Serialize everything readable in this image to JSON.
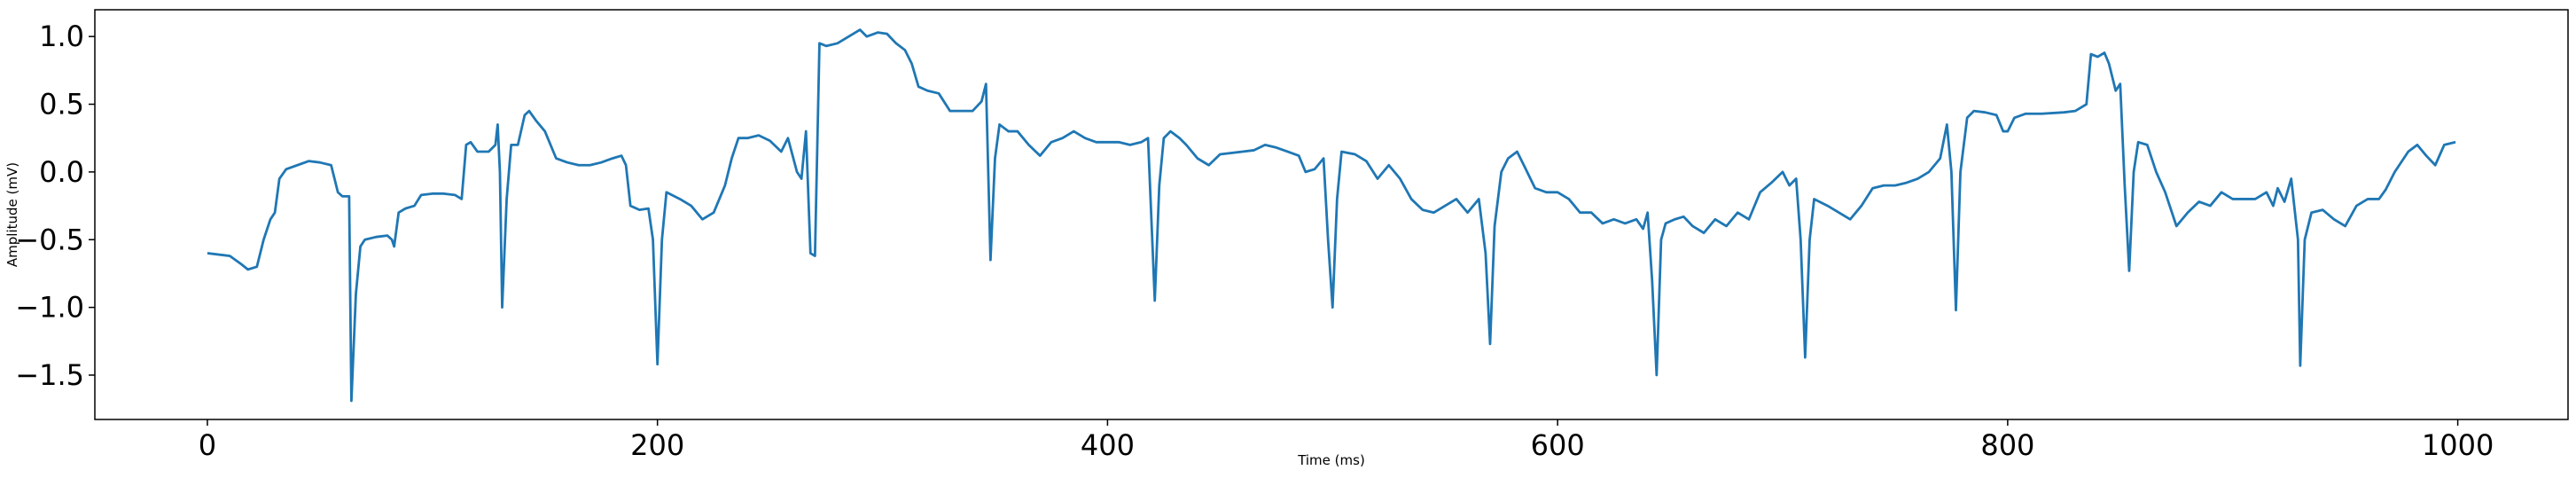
{
  "chart_data": {
    "type": "line",
    "x_label": "Time (ms)",
    "y_label": "Amplitude (mV)",
    "xlim": [
      -50,
      1049
    ],
    "ylim": [
      -1.8275,
      1.1975
    ],
    "xticks": [
      0,
      200,
      400,
      600,
      800,
      1000
    ],
    "yticks": [
      {
        "value": -1.5,
        "label": "−1.5"
      },
      {
        "value": -1,
        "label": "−1.0"
      },
      {
        "value": -0.5,
        "label": "−0.5"
      },
      {
        "value": 0,
        "label": "0.0"
      },
      {
        "value": 0.5,
        "label": "0.5"
      },
      {
        "value": 1,
        "label": "1.0"
      }
    ],
    "grid": false,
    "series": [
      {
        "color": "#1f77b4",
        "x": [
          0,
          10,
          15,
          18,
          22,
          25,
          28,
          30,
          32,
          35,
          40,
          45,
          50,
          55,
          58,
          60,
          63,
          64,
          66,
          68,
          70,
          75,
          80,
          82,
          83,
          85,
          88,
          92,
          95,
          100,
          105,
          110,
          113,
          115,
          117,
          120,
          125,
          128,
          129,
          130,
          131,
          133,
          135,
          138,
          141,
          143,
          146,
          150,
          155,
          160,
          165,
          170,
          175,
          180,
          184,
          186,
          188,
          192,
          196,
          198,
          200,
          202,
          204,
          210,
          215,
          220,
          225,
          230,
          233,
          236,
          240,
          245,
          250,
          255,
          258,
          262,
          264,
          266,
          268,
          270,
          272,
          275,
          280,
          285,
          290,
          293,
          298,
          302,
          306,
          310,
          313,
          316,
          320,
          325,
          330,
          335,
          340,
          344,
          346,
          348,
          350,
          352,
          356,
          360,
          365,
          370,
          375,
          380,
          385,
          390,
          395,
          400,
          405,
          410,
          415,
          418,
          421,
          423,
          425,
          428,
          432,
          435,
          440,
          445,
          450,
          455,
          460,
          465,
          470,
          475,
          480,
          485,
          488,
          492,
          496,
          498,
          500,
          502,
          504,
          510,
          515,
          520,
          525,
          530,
          535,
          540,
          545,
          550,
          555,
          560,
          565,
          568,
          570,
          572,
          575,
          578,
          582,
          585,
          590,
          595,
          600,
          605,
          610,
          615,
          620,
          625,
          630,
          635,
          638,
          640,
          642,
          644,
          646,
          648,
          652,
          656,
          660,
          665,
          670,
          675,
          680,
          685,
          690,
          695,
          700,
          703,
          706,
          708,
          710,
          712,
          714,
          720,
          725,
          730,
          735,
          740,
          745,
          750,
          755,
          760,
          765,
          770,
          773,
          775,
          777,
          779,
          782,
          785,
          790,
          795,
          798,
          800,
          803,
          808,
          815,
          825,
          830,
          835,
          837,
          840,
          843,
          845,
          848,
          850,
          852,
          854,
          856,
          858,
          862,
          866,
          870,
          875,
          880,
          885,
          890,
          895,
          900,
          905,
          910,
          915,
          918,
          920,
          923,
          926,
          929,
          930,
          932,
          935,
          940,
          945,
          950,
          955,
          960,
          965,
          968,
          972,
          978,
          982,
          986,
          990,
          994,
          999
        ],
        "values": [
          -0.6,
          -0.62,
          -0.68,
          -0.72,
          -0.7,
          -0.5,
          -0.35,
          -0.3,
          -0.05,
          0.02,
          0.05,
          0.08,
          0.07,
          0.05,
          -0.15,
          -0.18,
          -0.18,
          -1.69,
          -0.9,
          -0.55,
          -0.5,
          -0.48,
          -0.47,
          -0.5,
          -0.55,
          -0.3,
          -0.27,
          -0.25,
          -0.17,
          -0.16,
          -0.16,
          -0.17,
          -0.2,
          0.2,
          0.22,
          0.15,
          0.15,
          0.2,
          0.35,
          0.0,
          -1.0,
          -0.2,
          0.2,
          0.2,
          0.42,
          0.45,
          0.38,
          0.3,
          0.1,
          0.07,
          0.05,
          0.05,
          0.07,
          0.1,
          0.12,
          0.05,
          -0.25,
          -0.28,
          -0.27,
          -0.5,
          -1.42,
          -0.5,
          -0.15,
          -0.2,
          -0.25,
          -0.35,
          -0.3,
          -0.1,
          0.1,
          0.25,
          0.25,
          0.27,
          0.23,
          0.15,
          0.25,
          0.0,
          -0.05,
          0.3,
          -0.6,
          -0.62,
          0.95,
          0.93,
          0.95,
          1.0,
          1.05,
          1.0,
          1.03,
          1.02,
          0.95,
          0.9,
          0.8,
          0.63,
          0.6,
          0.58,
          0.45,
          0.45,
          0.45,
          0.52,
          0.65,
          -0.65,
          0.1,
          0.35,
          0.3,
          0.3,
          0.2,
          0.12,
          0.22,
          0.25,
          0.3,
          0.25,
          0.22,
          0.22,
          0.22,
          0.2,
          0.22,
          0.25,
          -0.95,
          -0.1,
          0.25,
          0.3,
          0.25,
          0.2,
          0.1,
          0.05,
          0.13,
          0.14,
          0.15,
          0.16,
          0.2,
          0.18,
          0.15,
          0.12,
          0.0,
          0.02,
          0.1,
          -0.5,
          -1.0,
          -0.2,
          0.15,
          0.13,
          0.08,
          -0.05,
          0.05,
          -0.05,
          -0.2,
          -0.28,
          -0.3,
          -0.25,
          -0.2,
          -0.3,
          -0.2,
          -0.6,
          -1.27,
          -0.4,
          0.0,
          0.1,
          0.15,
          0.05,
          -0.12,
          -0.15,
          -0.15,
          -0.2,
          -0.3,
          -0.3,
          -0.38,
          -0.35,
          -0.38,
          -0.35,
          -0.42,
          -0.3,
          -0.8,
          -1.5,
          -0.5,
          -0.38,
          -0.35,
          -0.33,
          -0.4,
          -0.45,
          -0.35,
          -0.4,
          -0.3,
          -0.35,
          -0.15,
          -0.08,
          0.0,
          -0.1,
          -0.05,
          -0.5,
          -1.37,
          -0.5,
          -0.2,
          -0.25,
          -0.3,
          -0.35,
          -0.25,
          -0.12,
          -0.1,
          -0.1,
          -0.08,
          -0.05,
          0.0,
          0.1,
          0.35,
          0.0,
          -1.02,
          0.0,
          0.4,
          0.45,
          0.44,
          0.42,
          0.3,
          0.3,
          0.4,
          0.43,
          0.43,
          0.44,
          0.45,
          0.5,
          0.87,
          0.85,
          0.88,
          0.8,
          0.6,
          0.65,
          -0.1,
          -0.73,
          0.0,
          0.22,
          0.2,
          0.0,
          -0.15,
          -0.4,
          -0.3,
          -0.22,
          -0.25,
          -0.15,
          -0.2,
          -0.2,
          -0.2,
          -0.15,
          -0.25,
          -0.12,
          -0.22,
          -0.05,
          -0.5,
          -1.43,
          -0.5,
          -0.3,
          -0.28,
          -0.35,
          -0.4,
          -0.25,
          -0.2,
          -0.2,
          -0.13,
          0.0,
          0.15,
          0.2,
          0.12,
          0.05,
          0.2,
          0.22
        ]
      }
    ]
  }
}
